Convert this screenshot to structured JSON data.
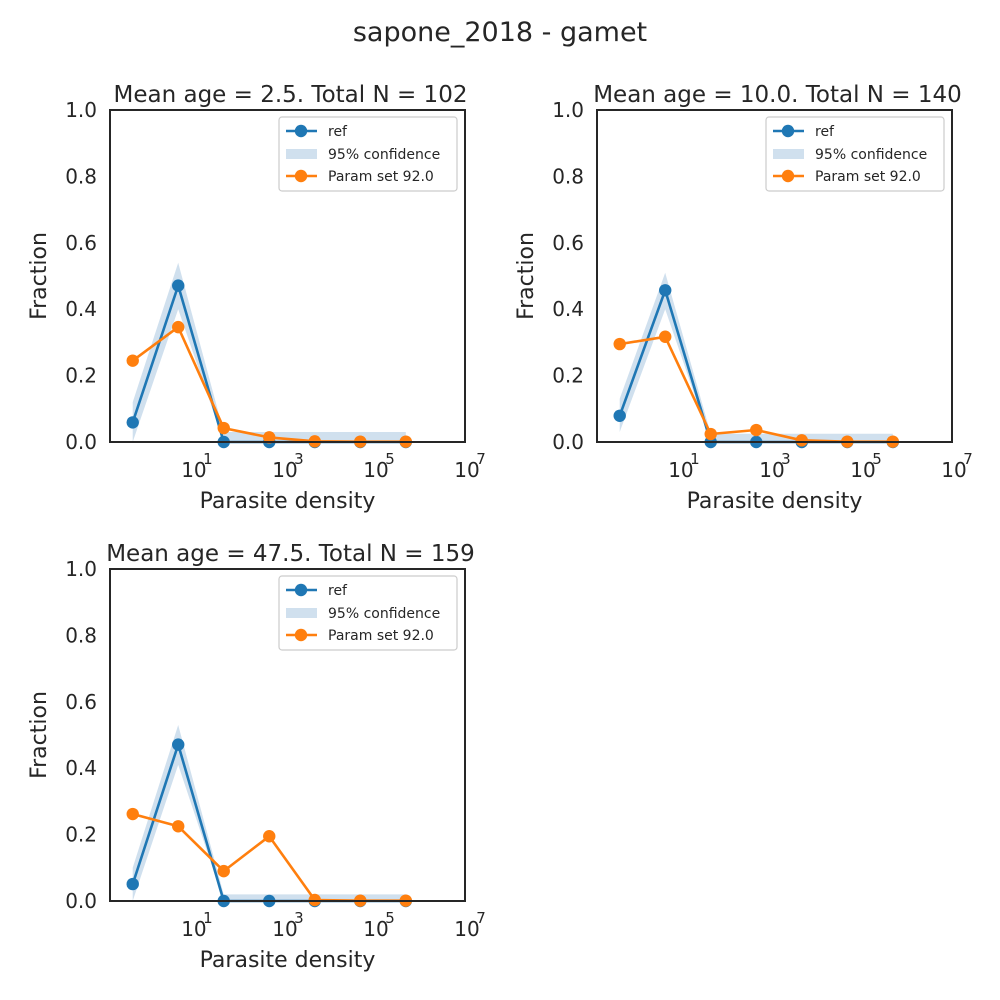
{
  "figure": {
    "title": "sapone_2018 - gamet"
  },
  "colors": {
    "ref": "#1f77b4",
    "sim": "#ff7f0e",
    "confidence": "#aac6e0",
    "axes": "#262626"
  },
  "chart_data": [
    {
      "type": "line",
      "title": "Mean age = 2.5.  Total N = 102",
      "xlabel": "Parasite density",
      "ylabel": "Fraction",
      "xscale": "log",
      "xlim": [
        0.1585,
        10000000
      ],
      "ylim": [
        0,
        1
      ],
      "xticks": [
        {
          "value": 10,
          "base": "10",
          "exp": "1"
        },
        {
          "value": 1000,
          "base": "10",
          "exp": "3"
        },
        {
          "value": 100000,
          "base": "10",
          "exp": "5"
        },
        {
          "value": 10000000,
          "base": "10",
          "exp": "7"
        }
      ],
      "yticks": [
        "0.0",
        "0.2",
        "0.4",
        "0.6",
        "0.8",
        "1.0"
      ],
      "grid": false,
      "legend": {
        "placement": "top-right",
        "entries": [
          "ref",
          "95% confidence",
          "Param set 92.0"
        ]
      },
      "x": [
        0.5,
        5,
        50,
        500,
        5000,
        50000,
        500000
      ],
      "series": [
        {
          "name": "ref",
          "values": [
            0.059,
            0.471,
            0.0,
            0.0,
            0.0,
            0.0,
            0.0
          ]
        },
        {
          "name": "Param set 92.0",
          "values": [
            0.245,
            0.346,
            0.042,
            0.014,
            0.002,
            0.001,
            0.001
          ]
        }
      ],
      "confidence": {
        "name": "95% confidence",
        "lower": [
          0.0,
          0.4,
          0.0,
          0.0,
          0.0,
          0.0,
          0.0
        ],
        "upper": [
          0.12,
          0.54,
          0.03,
          0.03,
          0.03,
          0.03,
          0.03
        ]
      }
    },
    {
      "type": "line",
      "title": "Mean age = 10.0.  Total N = 140",
      "xlabel": "Parasite density",
      "ylabel": "Fraction",
      "xscale": "log",
      "xlim": [
        0.1585,
        10000000
      ],
      "ylim": [
        0,
        1
      ],
      "xticks": [
        {
          "value": 10,
          "base": "10",
          "exp": "1"
        },
        {
          "value": 1000,
          "base": "10",
          "exp": "3"
        },
        {
          "value": 100000,
          "base": "10",
          "exp": "5"
        },
        {
          "value": 10000000,
          "base": "10",
          "exp": "7"
        }
      ],
      "yticks": [
        "0.0",
        "0.2",
        "0.4",
        "0.6",
        "0.8",
        "1.0"
      ],
      "grid": false,
      "legend": {
        "placement": "top-right",
        "entries": [
          "ref",
          "95% confidence",
          "Param set 92.0"
        ]
      },
      "x": [
        0.5,
        5,
        50,
        500,
        5000,
        50000,
        500000
      ],
      "series": [
        {
          "name": "ref",
          "values": [
            0.079,
            0.457,
            0.0,
            0.0,
            0.0,
            0.0,
            0.0
          ]
        },
        {
          "name": "Param set 92.0",
          "values": [
            0.295,
            0.317,
            0.024,
            0.036,
            0.005,
            0.001,
            0.001
          ]
        }
      ],
      "confidence": {
        "name": "95% confidence",
        "lower": [
          0.03,
          0.4,
          0.0,
          0.0,
          0.0,
          0.0,
          0.0
        ],
        "upper": [
          0.13,
          0.51,
          0.025,
          0.025,
          0.025,
          0.025,
          0.025
        ]
      }
    },
    {
      "type": "line",
      "title": "Mean age = 47.5.  Total N = 159",
      "xlabel": "Parasite density",
      "ylabel": "Fraction",
      "xscale": "log",
      "xlim": [
        0.1585,
        10000000
      ],
      "ylim": [
        0,
        1
      ],
      "xticks": [
        {
          "value": 10,
          "base": "10",
          "exp": "1"
        },
        {
          "value": 1000,
          "base": "10",
          "exp": "3"
        },
        {
          "value": 100000,
          "base": "10",
          "exp": "5"
        },
        {
          "value": 10000000,
          "base": "10",
          "exp": "7"
        }
      ],
      "yticks": [
        "0.0",
        "0.2",
        "0.4",
        "0.6",
        "0.8",
        "1.0"
      ],
      "grid": false,
      "legend": {
        "placement": "top-right",
        "entries": [
          "ref",
          "95% confidence",
          "Param set 92.0"
        ]
      },
      "x": [
        0.5,
        5,
        50,
        500,
        5000,
        50000,
        500000
      ],
      "series": [
        {
          "name": "ref",
          "values": [
            0.051,
            0.471,
            0.0,
            0.0,
            0.0,
            0.0,
            0.0
          ]
        },
        {
          "name": "Param set 92.0",
          "values": [
            0.262,
            0.225,
            0.09,
            0.195,
            0.003,
            0.001,
            0.001
          ]
        }
      ],
      "confidence": {
        "name": "95% confidence",
        "lower": [
          0.0,
          0.41,
          0.0,
          0.0,
          0.0,
          0.0,
          0.0
        ],
        "upper": [
          0.1,
          0.53,
          0.02,
          0.02,
          0.02,
          0.02,
          0.02
        ]
      }
    }
  ]
}
